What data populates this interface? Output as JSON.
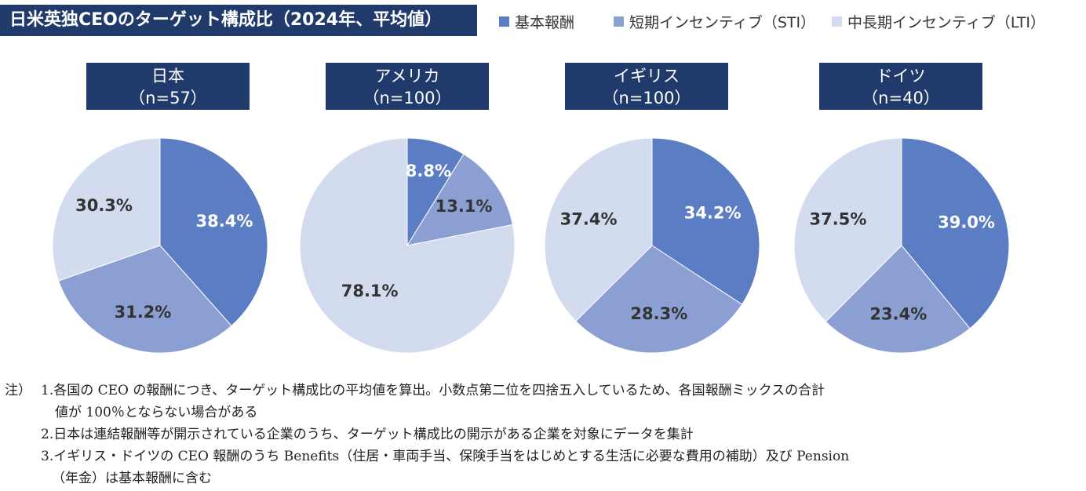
{
  "title": "日米英独CEOのターゲット構成比（2024年、平均値）",
  "legend": [
    {
      "label": "基本報酬",
      "color": "#5b7dc4"
    },
    {
      "label": "短期インセンティブ（STI）",
      "color": "#8c9fd3"
    },
    {
      "label": "中長期インセンティブ（LTI）",
      "color": "#d3dbef"
    }
  ],
  "chart_data": [
    {
      "type": "pie",
      "country": "日本",
      "sample": "（n=57）",
      "slices": [
        {
          "name": "基本報酬",
          "value": 38.4
        },
        {
          "name": "短期インセンティブ（STI）",
          "value": 31.2
        },
        {
          "name": "中長期インセンティブ（LTI）",
          "value": 30.3
        }
      ],
      "labels": [
        "38.4%",
        "31.2%",
        "30.3%"
      ]
    },
    {
      "type": "pie",
      "country": "アメリカ",
      "sample": "（n=100）",
      "slices": [
        {
          "name": "基本報酬",
          "value": 8.8
        },
        {
          "name": "短期インセンティブ（STI）",
          "value": 13.1
        },
        {
          "name": "中長期インセンティブ（LTI）",
          "value": 78.1
        }
      ],
      "labels": [
        "8.8%",
        "13.1%",
        "78.1%"
      ]
    },
    {
      "type": "pie",
      "country": "イギリス",
      "sample": "（n=100）",
      "slices": [
        {
          "name": "基本報酬",
          "value": 34.2
        },
        {
          "name": "短期インセンティブ（STI）",
          "value": 28.3
        },
        {
          "name": "中長期インセンティブ（LTI）",
          "value": 37.4
        }
      ],
      "labels": [
        "34.2%",
        "28.3%",
        "37.4%"
      ]
    },
    {
      "type": "pie",
      "country": "ドイツ",
      "sample": "（n=40）",
      "slices": [
        {
          "name": "基本報酬",
          "value": 39.0
        },
        {
          "name": "短期インセンティブ（STI）",
          "value": 23.4
        },
        {
          "name": "中長期インセンティブ（LTI）",
          "value": 37.5
        }
      ],
      "labels": [
        "39.0%",
        "23.4%",
        "37.5%"
      ]
    }
  ],
  "notes": {
    "prefix": "注）",
    "line1": "1.各国の CEO の報酬につき、ターゲット構成比の平均値を算出。小数点第二位を四捨五入しているため、各国報酬ミックスの合計",
    "line1b": "値が 100％とならない場合がある",
    "line2": "2.日本は連結報酬等が開示されている企業のうち、ターゲット構成比の開示がある企業を対象にデータを集計",
    "line3": "3.イギリス・ドイツの CEO 報酬のうち Benefits（住居・車両手当、保険手当をはじめとする生活に必要な費用の補助）及び Pension",
    "line3b": "（年金）は基本報酬に含む"
  }
}
